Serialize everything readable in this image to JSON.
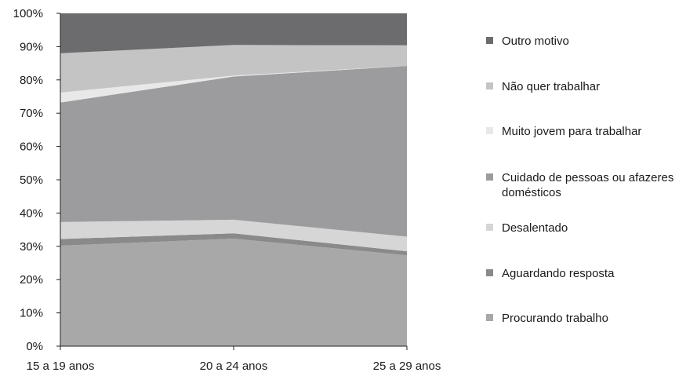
{
  "chart_data": {
    "type": "area",
    "stacked": true,
    "percent": true,
    "categories": [
      "15 a 19 anos",
      "20 a 24 anos",
      "25 a 29 anos"
    ],
    "series": [
      {
        "name": "Procurando trabalho",
        "color": "#a8a8a8",
        "values": [
          30.2,
          32.3,
          27.3
        ]
      },
      {
        "name": "Aguardando resposta",
        "color": "#8a8a8a",
        "values": [
          2.0,
          1.6,
          1.2
        ]
      },
      {
        "name": "Desalentado",
        "color": "#d6d6d6",
        "values": [
          5.1,
          4.1,
          4.4
        ]
      },
      {
        "name": "Cuidado de pessoas ou afazeres domésticos",
        "color": "#9c9c9e",
        "values": [
          35.9,
          43.0,
          51.3
        ]
      },
      {
        "name": "Muito jovem para trabalhar",
        "color": "#e8e8e8",
        "values": [
          3.0,
          0.3,
          0.0
        ]
      },
      {
        "name": "Não quer trabalhar",
        "color": "#c4c4c4",
        "values": [
          11.8,
          9.2,
          6.2
        ]
      },
      {
        "name": "Outro motivo",
        "color": "#6c6c6e",
        "values": [
          12.0,
          9.5,
          9.6
        ]
      }
    ],
    "legend_order": [
      "Outro motivo",
      "Não quer trabalhar",
      "Muito jovem para trabalhar",
      "Cuidado de pessoas ou afazeres domésticos",
      "Desalentado",
      "Aguardando resposta",
      "Procurando trabalho"
    ],
    "y_ticks": [
      "0%",
      "10%",
      "20%",
      "30%",
      "40%",
      "50%",
      "60%",
      "70%",
      "80%",
      "90%",
      "100%"
    ],
    "ylim": [
      0,
      100
    ],
    "title": "",
    "xlabel": "",
    "ylabel": "",
    "grid": false,
    "legend_position": "right"
  }
}
